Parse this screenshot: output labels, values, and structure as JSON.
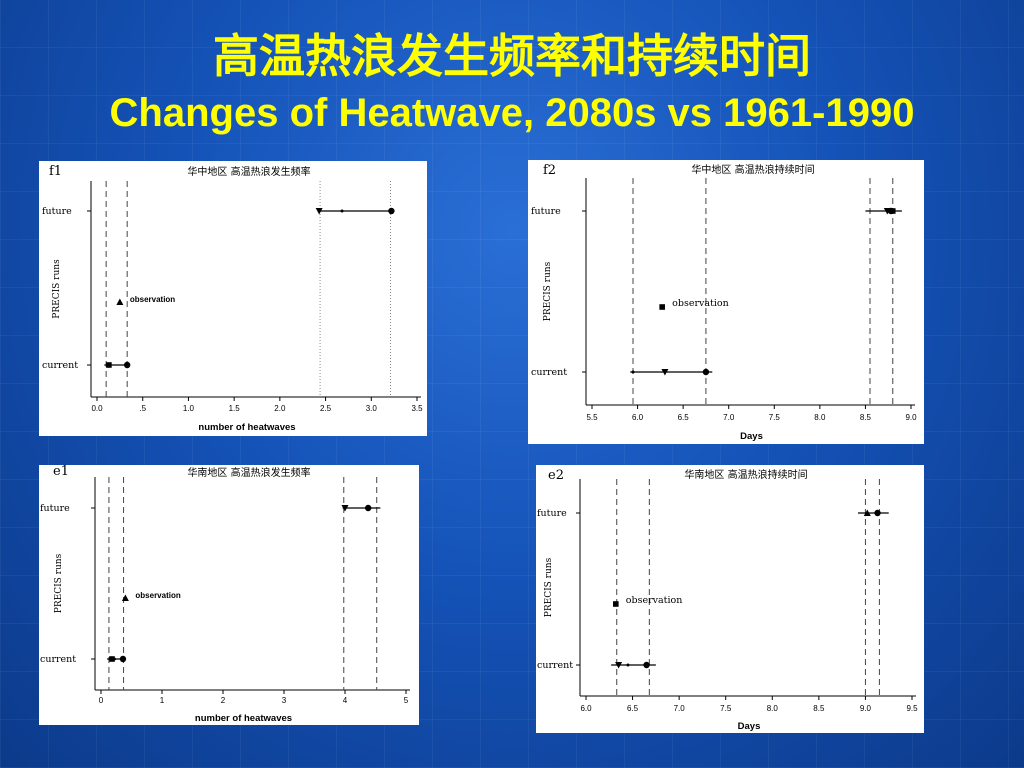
{
  "slide": {
    "title_cn": "高温热浪发生频率和持续时间",
    "title_en": "Changes of Heatwave, 2080s vs 1961-1990"
  },
  "chart_data": [
    {
      "id": "f1",
      "panel_tag": "f1",
      "title": "华中地区 高温热浪发生频率",
      "type": "scatter",
      "xlabel": "number of heatwaves",
      "ylabel": "PRECIS runs",
      "xlim": [
        0,
        3.5
      ],
      "ticks": [
        0,
        0.5,
        1,
        1.5,
        2,
        2.5,
        3,
        3.5
      ],
      "tick_labels": [
        "0.0",
        ".5",
        "1.0",
        "1.5",
        "2.0",
        "2.5",
        "3.0",
        "3.5"
      ],
      "rows": [
        "future",
        "current"
      ],
      "vlines": [
        {
          "x": 0.1,
          "style": "dashed"
        },
        {
          "x": 0.33,
          "style": "dashed"
        },
        {
          "x": 2.44,
          "style": "dotted"
        },
        {
          "x": 3.21,
          "style": "dotted"
        }
      ],
      "observation": {
        "label": "observation",
        "x": 0.25,
        "marker": "triangle"
      },
      "series": [
        {
          "row": "future",
          "range": [
            2.42,
            3.24
          ],
          "points": [
            {
              "x": 2.43,
              "marker": "tri-down"
            },
            {
              "x": 2.68,
              "marker": "dot"
            },
            {
              "x": 3.22,
              "marker": "circle"
            }
          ]
        },
        {
          "row": "current",
          "range": [
            0.08,
            0.35
          ],
          "points": [
            {
              "x": 0.13,
              "marker": "square"
            },
            {
              "x": 0.33,
              "marker": "circle"
            }
          ]
        }
      ]
    },
    {
      "id": "f2",
      "panel_tag": "f2",
      "title": "华中地区 高温热浪持续时间",
      "type": "scatter",
      "xlabel": "Days",
      "ylabel": "PRECIS runs",
      "xlim": [
        5.5,
        9.0
      ],
      "ticks": [
        5.5,
        6.0,
        6.5,
        7.0,
        7.5,
        8.0,
        8.5,
        9.0
      ],
      "tick_labels": [
        "5.5",
        "6.0",
        "6.5",
        "7.0",
        "7.5",
        "8.0",
        "8.5",
        "9.0"
      ],
      "rows": [
        "future",
        "current"
      ],
      "vlines": [
        {
          "x": 5.95,
          "style": "dashed"
        },
        {
          "x": 6.75,
          "style": "dashed"
        },
        {
          "x": 8.55,
          "style": "dashed"
        },
        {
          "x": 8.8,
          "style": "dashed"
        }
      ],
      "observation": {
        "label": "observation",
        "x": 6.27,
        "marker": "square"
      },
      "series": [
        {
          "row": "future",
          "range": [
            8.5,
            8.9
          ],
          "points": [
            {
              "x": 8.74,
              "marker": "tri-down"
            },
            {
              "x": 8.78,
              "marker": "circle"
            },
            {
              "x": 8.8,
              "marker": "square"
            }
          ]
        },
        {
          "row": "current",
          "range": [
            5.92,
            6.82
          ],
          "points": [
            {
              "x": 5.95,
              "marker": "dot"
            },
            {
              "x": 6.3,
              "marker": "tri-down"
            },
            {
              "x": 6.75,
              "marker": "circle"
            }
          ]
        }
      ]
    },
    {
      "id": "e1",
      "panel_tag": "e1",
      "title": "华南地区 高温热浪发生频率",
      "type": "scatter",
      "xlabel": "number of heatwaves",
      "ylabel": "PRECIS runs",
      "xlim": [
        0,
        5
      ],
      "ticks": [
        0,
        1,
        2,
        3,
        4,
        5
      ],
      "tick_labels": [
        "0",
        "1",
        "2",
        "3",
        "4",
        "5"
      ],
      "rows": [
        "future",
        "current"
      ],
      "vlines": [
        {
          "x": 0.13,
          "style": "dashed"
        },
        {
          "x": 0.37,
          "style": "dashed"
        },
        {
          "x": 3.98,
          "style": "dashed"
        },
        {
          "x": 4.52,
          "style": "dashed"
        }
      ],
      "observation": {
        "label": "observation",
        "x": 0.4,
        "marker": "triangle"
      },
      "series": [
        {
          "row": "future",
          "range": [
            3.96,
            4.58
          ],
          "points": [
            {
              "x": 4.0,
              "marker": "tri-down"
            },
            {
              "x": 4.38,
              "marker": "circle"
            }
          ]
        },
        {
          "row": "current",
          "range": [
            0.1,
            0.4
          ],
          "points": [
            {
              "x": 0.18,
              "marker": "square"
            },
            {
              "x": 0.22,
              "marker": "dot"
            },
            {
              "x": 0.36,
              "marker": "circle"
            }
          ]
        }
      ]
    },
    {
      "id": "e2",
      "panel_tag": "e2",
      "title": "华南地区 高温热浪持续时间",
      "type": "scatter",
      "xlabel": "Days",
      "ylabel": "PRECIS runs",
      "xlim": [
        6.0,
        9.5
      ],
      "ticks": [
        6.0,
        6.5,
        7.0,
        7.5,
        8.0,
        8.5,
        9.0,
        9.5
      ],
      "tick_labels": [
        "6.0",
        "6.5",
        "7.0",
        "7.5",
        "8.0",
        "8.5",
        "9.0",
        "9.5"
      ],
      "rows": [
        "future",
        "current"
      ],
      "vlines": [
        {
          "x": 6.33,
          "style": "dashed"
        },
        {
          "x": 6.68,
          "style": "dashed"
        },
        {
          "x": 9.0,
          "style": "dashed"
        },
        {
          "x": 9.15,
          "style": "dashed"
        }
      ],
      "observation": {
        "label": "observation",
        "x": 6.32,
        "marker": "square"
      },
      "series": [
        {
          "row": "future",
          "range": [
            8.92,
            9.25
          ],
          "points": [
            {
              "x": 9.02,
              "marker": "triangle"
            },
            {
              "x": 9.13,
              "marker": "circle"
            }
          ]
        },
        {
          "row": "current",
          "range": [
            6.27,
            6.75
          ],
          "points": [
            {
              "x": 6.35,
              "marker": "tri-down"
            },
            {
              "x": 6.45,
              "marker": "dot"
            },
            {
              "x": 6.65,
              "marker": "circle"
            }
          ]
        }
      ]
    }
  ]
}
